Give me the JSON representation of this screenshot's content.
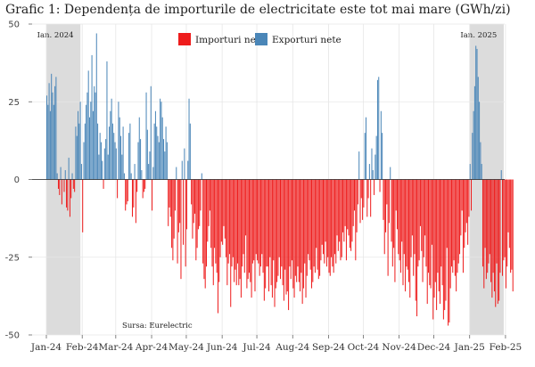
{
  "chart_data": {
    "type": "bar",
    "title": "Grafic 1: Dependența de importurile de electricitate este tot mai mare (GWh/zi)",
    "legend": {
      "placement": "top-center",
      "entries": [
        {
          "name": "Importuri nete",
          "color": "#ee1c1c"
        },
        {
          "name": "Exporturi nete",
          "color": "#4a86b8"
        }
      ]
    },
    "ylim": [
      -50,
      50
    ],
    "yticks": [
      -50,
      -25,
      0,
      25,
      50
    ],
    "ytick_labels": [
      "-50",
      "-25",
      "0",
      "25",
      "50"
    ],
    "xticks": [
      "Jan-24",
      "Feb-24",
      "Mar-24",
      "Apr-24",
      "May-24",
      "Jun-24",
      "Jul-24",
      "Aug-24",
      "Sep-24",
      "Oct-24",
      "Nov-24",
      "Dec-24",
      "Jan-25",
      "Feb-25"
    ],
    "grid": true,
    "shaded_periods": [
      {
        "label": "Ian. 2024",
        "start": "Jan-24",
        "end": "Feb-24"
      },
      {
        "label": "Ian. 2025",
        "start": "Jan-25",
        "end": "Feb-25"
      }
    ],
    "source_note": "Sursa: Eurelectric",
    "positive_color": "#4a86b8",
    "negative_color": "#ee1c1c",
    "month_profile": [
      {
        "month": "Jan-24",
        "values": [
          27,
          24,
          31,
          22,
          34,
          28,
          24,
          30,
          33,
          2,
          -3,
          -5,
          4,
          -8,
          0,
          -4,
          3,
          -9,
          -10,
          7,
          -12,
          -6,
          2,
          -3,
          -4,
          17,
          14,
          22,
          18,
          25,
          5
        ]
      },
      {
        "month": "Feb-24",
        "values": [
          -17,
          12,
          18,
          24,
          28,
          35,
          20,
          25,
          40,
          22,
          30,
          28,
          47,
          18,
          8,
          15,
          12,
          6,
          -3,
          10,
          13,
          38,
          8,
          17,
          22,
          26,
          18,
          15,
          12
        ]
      },
      {
        "month": "Mar-24",
        "values": [
          10,
          -6,
          25,
          20,
          14,
          8,
          17,
          2,
          -10,
          -8,
          -7,
          15,
          18,
          2,
          -12,
          -9,
          5,
          -14,
          -4,
          12,
          20,
          13,
          3,
          -6,
          -4,
          -3,
          28,
          16,
          5,
          9,
          30
        ]
      },
      {
        "month": "Apr-24",
        "values": [
          -10,
          4,
          18,
          22,
          17,
          14,
          12,
          26,
          25,
          20,
          13,
          9,
          17,
          12,
          -15,
          -9,
          -12,
          -22,
          -26,
          -19,
          -10,
          4,
          -27,
          -17,
          -14,
          -32,
          6,
          -21,
          10,
          -28
        ]
      },
      {
        "month": "May-24",
        "values": [
          -16,
          6,
          26,
          18,
          -8,
          -19,
          -14,
          -11,
          -26,
          -22,
          -16,
          -15,
          -10,
          2,
          -27,
          -32,
          -35,
          -28,
          -20,
          -15,
          -10,
          -22,
          -28,
          -34,
          -22,
          -27,
          -30,
          -43,
          -33,
          -25,
          -20
        ]
      },
      {
        "month": "Jun-24",
        "values": [
          -21,
          -15,
          -19,
          -25,
          -34,
          -27,
          -24,
          -41,
          -28,
          -25,
          -33,
          -29,
          -34,
          -27,
          -34,
          -32,
          -38,
          -28,
          -24,
          -30,
          -18,
          -35,
          -32,
          -30,
          -33,
          -38,
          -27,
          -26,
          -36,
          -24
        ]
      },
      {
        "month": "Jul-24",
        "values": [
          -26,
          -27,
          -31,
          -28,
          -24,
          -30,
          -39,
          -35,
          -28,
          -28,
          -36,
          -25,
          -34,
          -38,
          -26,
          -41,
          -35,
          -33,
          -31,
          -25,
          -32,
          -28,
          -34,
          -39,
          -29,
          -37,
          -36,
          -42,
          -28,
          -32,
          -26
        ]
      },
      {
        "month": "Aug-24",
        "values": [
          -35,
          -38,
          -31,
          -33,
          -28,
          -33,
          -36,
          -30,
          -40,
          -35,
          -27,
          -38,
          -31,
          -24,
          -26,
          -29,
          -35,
          -33,
          -28,
          -30,
          -22,
          -29,
          -32,
          -31,
          -26,
          -21,
          -24,
          -27,
          -20,
          -28,
          -25
        ]
      },
      {
        "month": "Sep-24",
        "values": [
          -30,
          -31,
          -25,
          -28,
          -30,
          -24,
          -27,
          -18,
          -23,
          -20,
          -26,
          -25,
          -17,
          -20,
          -15,
          -26,
          -16,
          -18,
          -22,
          -23,
          -20,
          -15,
          -10,
          -26,
          -17,
          -8,
          9,
          -14,
          -6,
          -13
        ]
      },
      {
        "month": "Oct-24",
        "values": [
          -9,
          15,
          20,
          -12,
          -6,
          5,
          -12,
          10,
          3,
          -5,
          8,
          14,
          32,
          33,
          -4,
          22,
          15,
          -13,
          -24,
          -17,
          -8,
          -31,
          -14,
          4,
          -20,
          -28,
          -22,
          -33,
          -10,
          -16,
          -24
        ]
      },
      {
        "month": "Nov-24",
        "values": [
          -26,
          -30,
          -20,
          -34,
          -24,
          -36,
          -28,
          -29,
          -33,
          -38,
          -25,
          -18,
          -31,
          -24,
          -39,
          -44,
          -28,
          -26,
          -15,
          -23,
          -33,
          -25,
          -18,
          -28,
          -40,
          -30,
          -34,
          -35,
          -21,
          -45
        ]
      },
      {
        "month": "Dec-24",
        "values": [
          -38,
          -33,
          -42,
          -30,
          -36,
          -40,
          -28,
          -34,
          -45,
          -42,
          -39,
          -22,
          -47,
          -46,
          -35,
          -28,
          -30,
          -26,
          -31,
          -36,
          -30,
          -27,
          -24,
          -18,
          -10,
          -30,
          -22,
          -17,
          -14,
          -21,
          -12
        ]
      },
      {
        "month": "Jan-25",
        "values": [
          5,
          -10,
          15,
          22,
          30,
          43,
          42,
          33,
          25,
          12,
          5,
          -28,
          -35,
          -22,
          -32,
          -30,
          -27,
          -24,
          -33,
          -38,
          -30,
          -36,
          -41,
          -27,
          -40,
          -39,
          -30,
          3,
          -31,
          -26,
          -25
        ]
      },
      {
        "month": "Feb-25",
        "values": [
          -35,
          -28,
          -17,
          -22,
          -30,
          -29,
          -36
        ]
      }
    ]
  }
}
